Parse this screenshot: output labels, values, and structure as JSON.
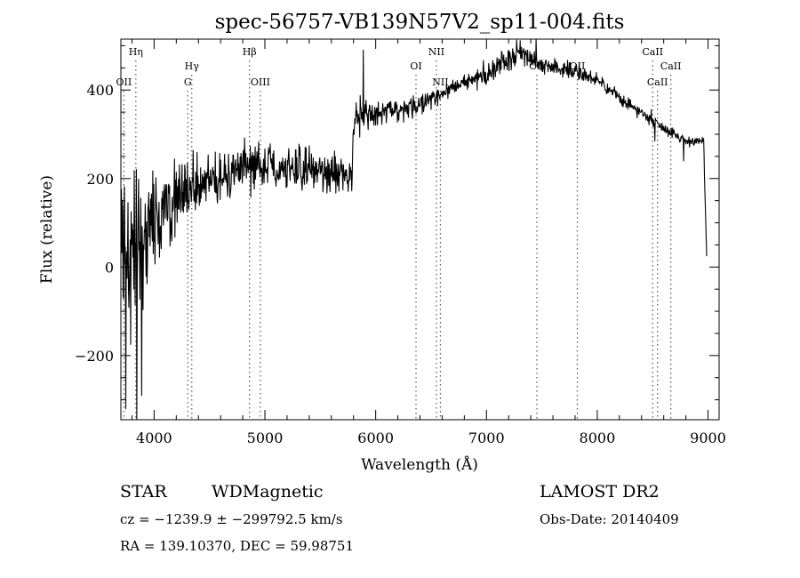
{
  "chart_data": {
    "type": "line",
    "title": "spec-56757-VB139N57V2_sp11-004.fits",
    "xlabel": "Wavelength (Å)",
    "ylabel": "Flux (relative)",
    "xlim": [
      3700,
      9100
    ],
    "ylim": [
      -345,
      515
    ],
    "x_ticks": [
      4000,
      5000,
      6000,
      7000,
      8000,
      9000
    ],
    "y_ticks": [
      -200,
      0,
      200,
      400
    ],
    "x_tick_labels": [
      "4000",
      "5000",
      "6000",
      "7000",
      "8000",
      "9000"
    ],
    "y_tick_labels": [
      "−200",
      "0",
      "200",
      "400"
    ],
    "grid": false,
    "spectrum": {
      "noise_seed": 57,
      "anchors": [
        {
          "x": 3700,
          "y": 80,
          "noise": 150
        },
        {
          "x": 3800,
          "y": 40,
          "noise": 150
        },
        {
          "x": 3900,
          "y": 60,
          "noise": 130
        },
        {
          "x": 4000,
          "y": 110,
          "noise": 110
        },
        {
          "x": 4200,
          "y": 150,
          "noise": 75
        },
        {
          "x": 4500,
          "y": 200,
          "noise": 50
        },
        {
          "x": 5000,
          "y": 235,
          "noise": 40
        },
        {
          "x": 5500,
          "y": 215,
          "noise": 40
        },
        {
          "x": 5790,
          "y": 205,
          "noise": 35
        },
        {
          "x": 5800,
          "y": 340,
          "noise": 40
        },
        {
          "x": 6000,
          "y": 345,
          "noise": 28
        },
        {
          "x": 6300,
          "y": 355,
          "noise": 20
        },
        {
          "x": 6600,
          "y": 395,
          "noise": 14
        },
        {
          "x": 7000,
          "y": 435,
          "noise": 22
        },
        {
          "x": 7300,
          "y": 490,
          "noise": 22
        },
        {
          "x": 7500,
          "y": 455,
          "noise": 14
        },
        {
          "x": 7800,
          "y": 445,
          "noise": 15
        },
        {
          "x": 8000,
          "y": 420,
          "noise": 13
        },
        {
          "x": 8300,
          "y": 365,
          "noise": 12
        },
        {
          "x": 8600,
          "y": 315,
          "noise": 10
        },
        {
          "x": 8800,
          "y": 285,
          "noise": 10
        },
        {
          "x": 8960,
          "y": 285,
          "noise": 8
        },
        {
          "x": 8990,
          "y": 5,
          "noise": 0
        }
      ],
      "spikes": [
        {
          "x": 3745,
          "y": -320
        },
        {
          "x": 3790,
          "y": -175
        },
        {
          "x": 3845,
          "y": -345
        },
        {
          "x": 3890,
          "y": -290
        },
        {
          "x": 5890,
          "y": 490
        },
        {
          "x": 6560,
          "y": 365
        },
        {
          "x": 7450,
          "y": 515
        },
        {
          "x": 8490,
          "y": 355
        },
        {
          "x": 8520,
          "y": 285
        },
        {
          "x": 8780,
          "y": 240
        }
      ]
    },
    "line_markers": [
      {
        "x": 3835,
        "label": "Hη",
        "row": 0
      },
      {
        "x": 3727,
        "label": "OII",
        "row": 2
      },
      {
        "x": 4304,
        "label": "G",
        "row": 2
      },
      {
        "x": 4340,
        "label": "Hγ",
        "row": 1
      },
      {
        "x": 4861,
        "label": "Hβ",
        "row": 0
      },
      {
        "x": 4959,
        "label": "OIII",
        "row": 2
      },
      {
        "x": 6364,
        "label": "OI",
        "row": 1
      },
      {
        "x": 6548,
        "label": "NII",
        "row": 0
      },
      {
        "x": 6584,
        "label": "NII",
        "row": 2
      },
      {
        "x": 7455,
        "label": "OII",
        "row": 1
      },
      {
        "x": 7820,
        "label": "OII",
        "row": 1
      },
      {
        "x": 8500,
        "label": "CaII",
        "row": 0
      },
      {
        "x": 8544,
        "label": "CaII",
        "row": 2
      },
      {
        "x": 8664,
        "label": "CaII",
        "row": 1
      }
    ]
  },
  "info": {
    "class_label": "STAR",
    "subclass_label": "WDMagnetic",
    "survey_label": "LAMOST DR2",
    "cz_label": "cz = −1239.9 ± −299792.5 km/s",
    "obs_date_label": "Obs-Date: 20140409",
    "radec_label": "RA = 139.10370, DEC =  59.98751"
  }
}
